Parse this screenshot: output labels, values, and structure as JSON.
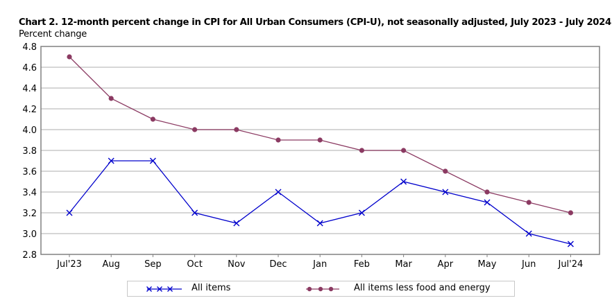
{
  "chart_data": {
    "type": "line",
    "title": "Chart 2. 12-month percent change in CPI for All Urban Consumers (CPI-U), not seasonally adjusted, July 2023 - July 2024",
    "ylabel": "Percent change",
    "xlabel": "",
    "categories": [
      "Jul'23",
      "Aug",
      "Sep",
      "Oct",
      "Nov",
      "Dec",
      "Jan",
      "Feb",
      "Mar",
      "Apr",
      "May",
      "Jun",
      "Jul'24"
    ],
    "ylim": [
      2.8,
      4.8
    ],
    "yticks": [
      2.8,
      3.0,
      3.2,
      3.4,
      3.6,
      3.8,
      4.0,
      4.2,
      4.4,
      4.6,
      4.8
    ],
    "ytick_labels": [
      "2.8",
      "3.0",
      "3.2",
      "3.4",
      "3.6",
      "3.8",
      "4.0",
      "4.2",
      "4.4",
      "4.6",
      "4.8"
    ],
    "grid": true,
    "legend_position": "bottom",
    "series": [
      {
        "name": "All items",
        "color": "#0000cc",
        "marker": "x",
        "values": [
          3.2,
          3.7,
          3.7,
          3.2,
          3.1,
          3.4,
          3.1,
          3.2,
          3.5,
          3.4,
          3.3,
          3.0,
          2.9
        ]
      },
      {
        "name": "All items less food and energy",
        "color": "#8b3a62",
        "marker": "circle",
        "values": [
          4.7,
          4.3,
          4.1,
          4.0,
          4.0,
          3.9,
          3.9,
          3.8,
          3.8,
          3.6,
          3.4,
          3.3,
          3.2
        ]
      }
    ]
  },
  "colors": {
    "grid": "#c8c8c8",
    "axis": "#808080",
    "all_items": "#0000cc",
    "core": "#8b3a62"
  }
}
